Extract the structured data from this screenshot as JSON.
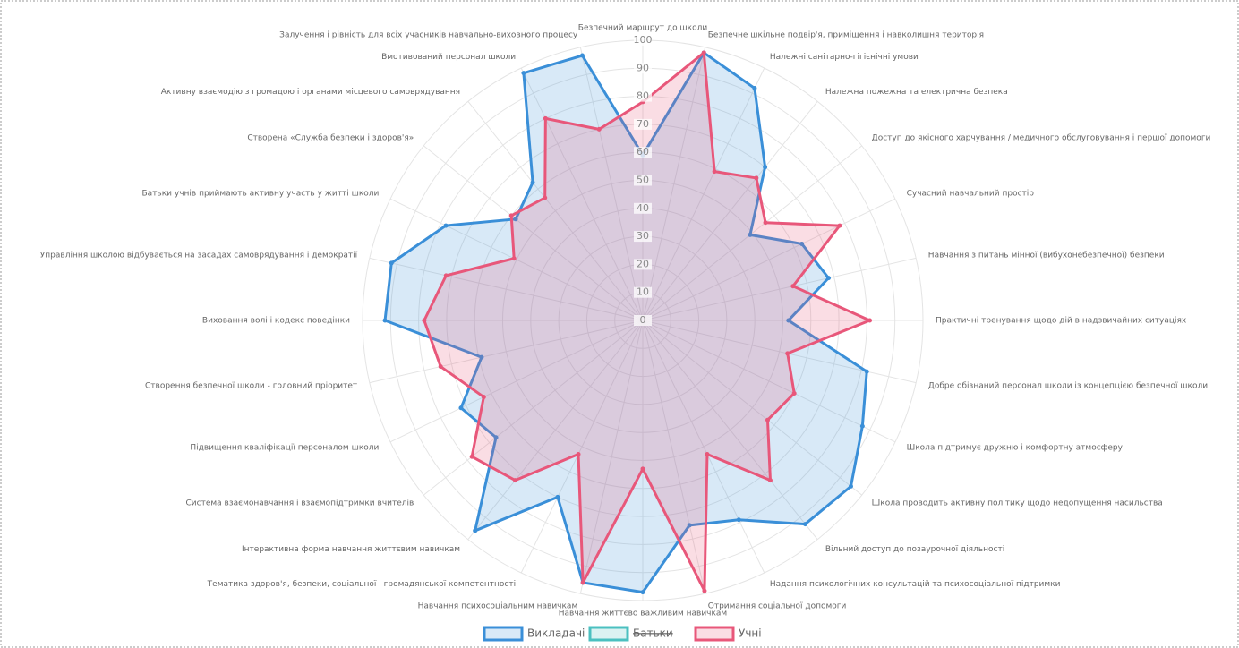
{
  "chart_data": {
    "type": "radar",
    "categories": [
      "Безпечний маршрут до школи",
      "Безпечне шкільне подвір'я, приміщення і навколишня територія",
      "Належні санітарно-гігієнічні умови",
      "Належна пожежна та електрична безпека",
      "Доступ до якісного харчування / медичного обслуговування і першої допомоги",
      "Сучасний навчальний простір",
      "Навчання з питань мінної (вибухонебезпечної) безпеки",
      "Практичні тренування щодо дій в надзвичайних ситуаціях",
      "Добре обізнаний персонал школи із концепцією безпечної школи",
      "Школа підтримує дружню і комфортну атмосферу",
      "Школа проводить активну політику щодо недопущення насильства",
      "Вільний доступ до позаурочної діяльності",
      "Надання психологічних консультацій та психосоціальної підтримки",
      "Отримання соціальної допомоги",
      "Навчання життєво важливим навичкам",
      "Навчання психосоціальним навичкам",
      "Тематика здоров'я, безпеки, соціальної і громадянської компетентності",
      "Інтерактивна форма навчання життєвим навичкам",
      "Система взаємонавчання і взаємопідтримки вчителів",
      "Підвищення кваліфікації персоналом школи",
      "Створення безпечної школи - головний пріоритет",
      "Виховання волі і кодекс поведінки",
      "Управління школою відбувається на засадах самоврядування і демократії",
      "Батьки учнів приймають активну участь у житті школи",
      "Створена «Служба безпеки і здоров'я»",
      "Активну взаємодію з громадою і органами місцевого самоврядування",
      "Вмотивований персонал школи",
      "Залучення і рівність для всіх учасників навчально-виховного процесу"
    ],
    "series": [
      {
        "name": "Викладачі",
        "color": "#3a8fd8",
        "values": [
          59,
          98,
          92,
          70,
          49,
          63,
          68,
          52,
          82,
          87,
          95,
          93,
          79,
          75,
          97,
          96,
          70,
          96,
          67,
          72,
          59,
          92,
          92,
          78,
          58,
          63,
          98,
          97
        ]
      },
      {
        "name": "Батьки",
        "color": "#4bc0c0",
        "hidden": true,
        "values": [
          null,
          null,
          null,
          null,
          null,
          null,
          null,
          null,
          null,
          null,
          null,
          null,
          null,
          null,
          null,
          null,
          null,
          null,
          null,
          null,
          null,
          null,
          null,
          null,
          null,
          null,
          null,
          null
        ]
      },
      {
        "name": "Учні",
        "color": "#e8577a",
        "values": [
          78,
          98,
          59,
          65,
          56,
          78,
          55,
          81,
          53,
          60,
          57,
          73,
          53,
          99,
          53,
          96,
          53,
          73,
          78,
          63,
          74,
          78,
          72,
          51,
          60,
          56,
          80,
          70
        ]
      }
    ],
    "rlim": [
      0,
      100
    ],
    "rticks": [
      0,
      10,
      20,
      30,
      40,
      50,
      60,
      70,
      80,
      90,
      100
    ],
    "grid": true,
    "legend": "bottom"
  }
}
